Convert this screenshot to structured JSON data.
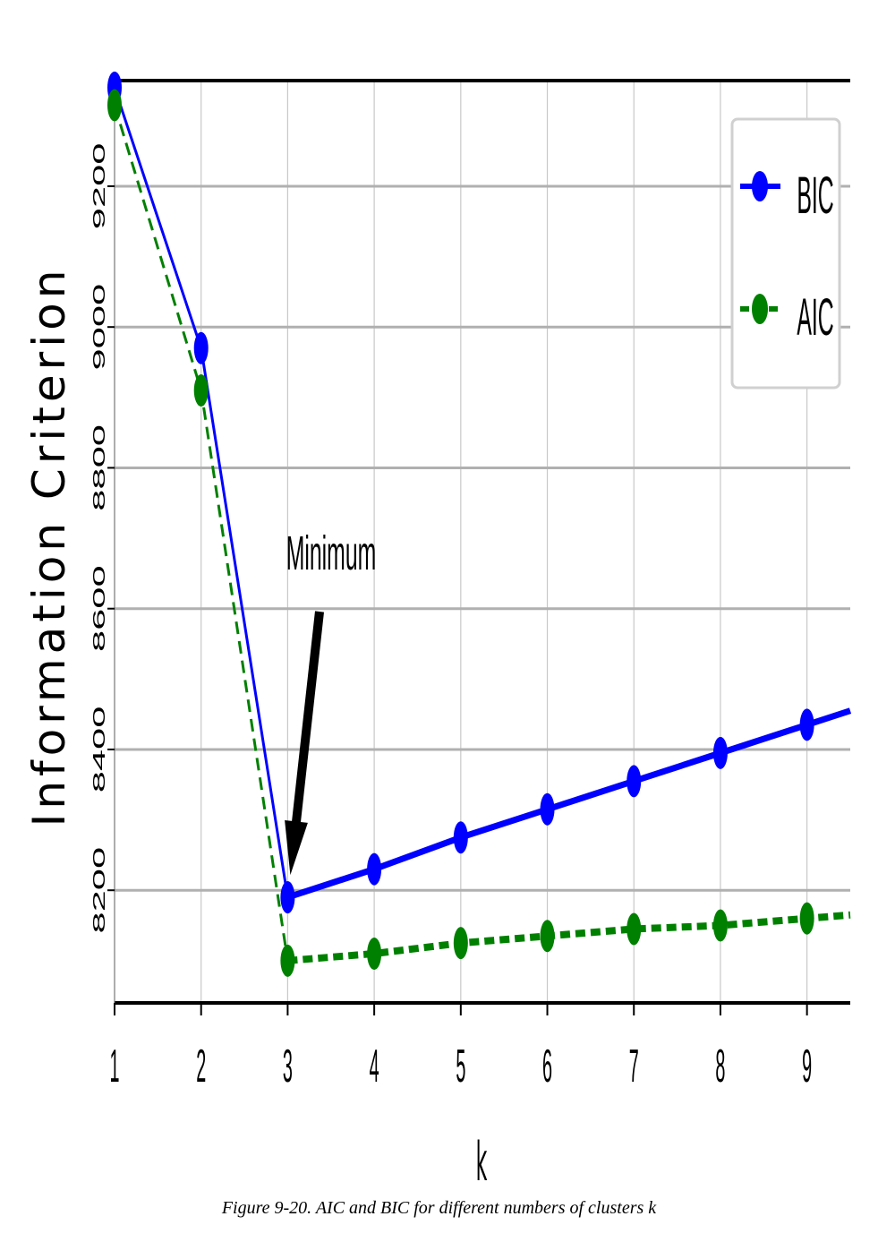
{
  "caption": "Figure 9-20. AIC and BIC for different numbers of clusters k",
  "chart_data": {
    "type": "line",
    "title": "",
    "xlabel": "k",
    "ylabel": "Information Criterion",
    "xlim": [
      1,
      9.5
    ],
    "ylim": [
      8040,
      9350
    ],
    "x_ticks": [
      "1",
      "2",
      "3",
      "4",
      "5",
      "6",
      "7",
      "8",
      "9"
    ],
    "y_ticks": [
      "8200",
      "8400",
      "8600",
      "8800",
      "9000",
      "9200"
    ],
    "grid": true,
    "legend_position": "top-right",
    "x": [
      1,
      2,
      3,
      4,
      5,
      6,
      7,
      8,
      9
    ],
    "series": [
      {
        "name": "BIC",
        "color": "#0000ff",
        "style": "solid",
        "values": [
          9340,
          8970,
          8190,
          8230,
          8275,
          8315,
          8355,
          8395,
          8435
        ],
        "extend_to": [
          9.5,
          8455
        ]
      },
      {
        "name": "AIC",
        "color": "#008000",
        "style": "dashed",
        "values": [
          9315,
          8910,
          8100,
          8110,
          8125,
          8135,
          8145,
          8150,
          8160
        ],
        "extend_to": [
          9.5,
          8165
        ]
      }
    ],
    "annotations": [
      {
        "text": "Minimum",
        "x": 3,
        "y": 8190
      }
    ]
  }
}
